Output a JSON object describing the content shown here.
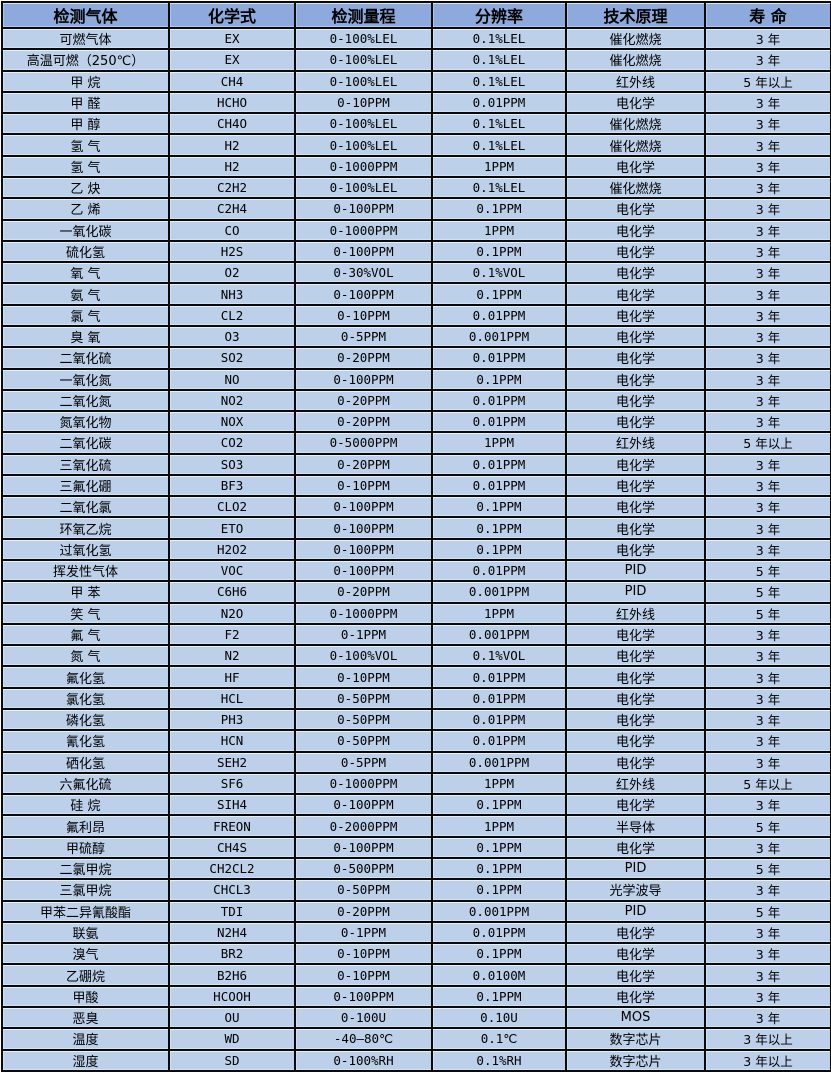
{
  "colors": {
    "header_bg": "#8ea9db",
    "row_bg": "#bcd0ea",
    "grid": "#0a0a0a",
    "text": "#000000"
  },
  "table": {
    "column_keys": [
      "gas",
      "formula",
      "range",
      "resolution",
      "principle",
      "lifespan"
    ],
    "headers": [
      "检测气体",
      "化学式",
      "检测量程",
      "分辨率",
      "技术原理",
      "寿 命"
    ],
    "rows": [
      [
        "可燃气体",
        "EX",
        "0-100%LEL",
        "0.1%LEL",
        "催化燃烧",
        "3 年"
      ],
      [
        "高温可燃（250℃）",
        "EX",
        "0-100%LEL",
        "0.1%LEL",
        "催化燃烧",
        "3 年"
      ],
      [
        "甲 烷",
        "CH4",
        "0-100%LEL",
        "0.1%LEL",
        "红外线",
        "5 年以上"
      ],
      [
        "甲 醛",
        "HCHO",
        "0-10PPM",
        "0.01PPM",
        "电化学",
        "3 年"
      ],
      [
        "甲 醇",
        "CH4O",
        "0-100%LEL",
        "0.1%LEL",
        "催化燃烧",
        "3 年"
      ],
      [
        "氢 气",
        "H2",
        "0-100%LEL",
        "0.1%LEL",
        "催化燃烧",
        "3 年"
      ],
      [
        "氢 气",
        "H2",
        "0-1000PPM",
        "1PPM",
        "电化学",
        "3 年"
      ],
      [
        "乙 炔",
        "C2H2",
        "0-100%LEL",
        "0.1%LEL",
        "催化燃烧",
        "3 年"
      ],
      [
        "乙 烯",
        "C2H4",
        "0-100PPM",
        "0.1PPM",
        "电化学",
        "3 年"
      ],
      [
        "一氧化碳",
        "CO",
        "0-1000PPM",
        "1PPM",
        "电化学",
        "3 年"
      ],
      [
        "硫化氢",
        "H2S",
        "0-100PPM",
        "0.1PPM",
        "电化学",
        "3 年"
      ],
      [
        "氧 气",
        "O2",
        "0-30%VOL",
        "0.1%VOL",
        "电化学",
        "3 年"
      ],
      [
        "氨 气",
        "NH3",
        "0-100PPM",
        "0.1PPM",
        "电化学",
        "3 年"
      ],
      [
        "氯 气",
        "CL2",
        "0-10PPM",
        "0.01PPM",
        "电化学",
        "3 年"
      ],
      [
        "臭 氧",
        "O3",
        "0-5PPM",
        "0.001PPM",
        "电化学",
        "3 年"
      ],
      [
        "二氧化硫",
        "SO2",
        "0-20PPM",
        "0.01PPM",
        "电化学",
        "3 年"
      ],
      [
        "一氧化氮",
        "NO",
        "0-100PPM",
        "0.1PPM",
        "电化学",
        "3 年"
      ],
      [
        "二氧化氮",
        "NO2",
        "0-20PPM",
        "0.01PPM",
        "电化学",
        "3 年"
      ],
      [
        "氮氧化物",
        "NOX",
        "0-20PPM",
        "0.01PPM",
        "电化学",
        "3 年"
      ],
      [
        "二氧化碳",
        "CO2",
        "0-5000PPM",
        "1PPM",
        "红外线",
        "5 年以上"
      ],
      [
        "三氧化硫",
        "SO3",
        "0-20PPM",
        "0.01PPM",
        "电化学",
        "3 年"
      ],
      [
        "三氟化硼",
        "BF3",
        "0-10PPM",
        "0.01PPM",
        "电化学",
        "3 年"
      ],
      [
        "二氧化氯",
        "CLO2",
        "0-100PPM",
        "0.1PPM",
        "电化学",
        "3 年"
      ],
      [
        "环氧乙烷",
        "ETO",
        "0-100PPM",
        "0.1PPM",
        "电化学",
        "3 年"
      ],
      [
        "过氧化氢",
        "H2O2",
        "0-100PPM",
        "0.1PPM",
        "电化学",
        "3 年"
      ],
      [
        "挥发性气体",
        "VOC",
        "0-100PPM",
        "0.01PPM",
        "PID",
        "5 年"
      ],
      [
        "甲 苯",
        "C6H6",
        "0-20PPM",
        "0.001PPM",
        "PID",
        "5 年"
      ],
      [
        "笑 气",
        "N2O",
        "0-1000PPM",
        "1PPM",
        "红外线",
        "5 年"
      ],
      [
        "氟 气",
        "F2",
        "0-1PPM",
        "0.001PPM",
        "电化学",
        "3 年"
      ],
      [
        "氮 气",
        "N2",
        "0-100%VOL",
        "0.1%VOL",
        "电化学",
        "3 年"
      ],
      [
        "氟化氢",
        "HF",
        "0-10PPM",
        "0.01PPM",
        "电化学",
        "3 年"
      ],
      [
        "氯化氢",
        "HCL",
        "0-50PPM",
        "0.01PPM",
        "电化学",
        "3 年"
      ],
      [
        "磷化氢",
        "PH3",
        "0-50PPM",
        "0.01PPM",
        "电化学",
        "3 年"
      ],
      [
        "氰化氢",
        "HCN",
        "0-50PPM",
        "0.01PPM",
        "电化学",
        "3 年"
      ],
      [
        "硒化氢",
        "SEH2",
        "0-5PPM",
        "0.001PPM",
        "电化学",
        "3 年"
      ],
      [
        "六氟化硫",
        "SF6",
        "0-1000PPM",
        "1PPM",
        "红外线",
        "5 年以上"
      ],
      [
        "硅 烷",
        "SIH4",
        "0-100PPM",
        "0.1PPM",
        "电化学",
        "3 年"
      ],
      [
        "氟利昂",
        "FREON",
        "0-2000PPM",
        "1PPM",
        "半导体",
        "5 年"
      ],
      [
        "甲硫醇",
        "CH4S",
        "0-100PPM",
        "0.1PPM",
        "电化学",
        "3 年"
      ],
      [
        "二氯甲烷",
        "CH2CL2",
        "0-500PPM",
        "0.1PPM",
        "PID",
        "5 年"
      ],
      [
        "三氯甲烷",
        "CHCL3",
        "0-50PPM",
        "0.1PPM",
        "光学波导",
        "3 年"
      ],
      [
        "甲苯二异氰酸酯",
        "TDI",
        "0-20PPM",
        "0.001PPM",
        "PID",
        "5 年"
      ],
      [
        "联氨",
        "N2H4",
        "0-1PPM",
        "0.01PPM",
        "电化学",
        "3 年"
      ],
      [
        "溴气",
        "BR2",
        "0-10PPM",
        "0.1PPM",
        "电化学",
        "3 年"
      ],
      [
        "乙硼烷",
        "B2H6",
        "0-10PPM",
        "0.0100M",
        "电化学",
        "3 年"
      ],
      [
        "甲酸",
        "HCOOH",
        "0-100PPM",
        "0.1PPM",
        "电化学",
        "3 年"
      ],
      [
        "恶臭",
        "OU",
        "0-100U",
        "0.10U",
        "MOS",
        "3 年"
      ],
      [
        "温度",
        "WD",
        "-40—80℃",
        "0.1℃",
        "数字芯片",
        "3 年以上"
      ],
      [
        "湿度",
        "SD",
        "0-100%RH",
        "0.1%RH",
        "数字芯片",
        "3 年以上"
      ]
    ]
  }
}
